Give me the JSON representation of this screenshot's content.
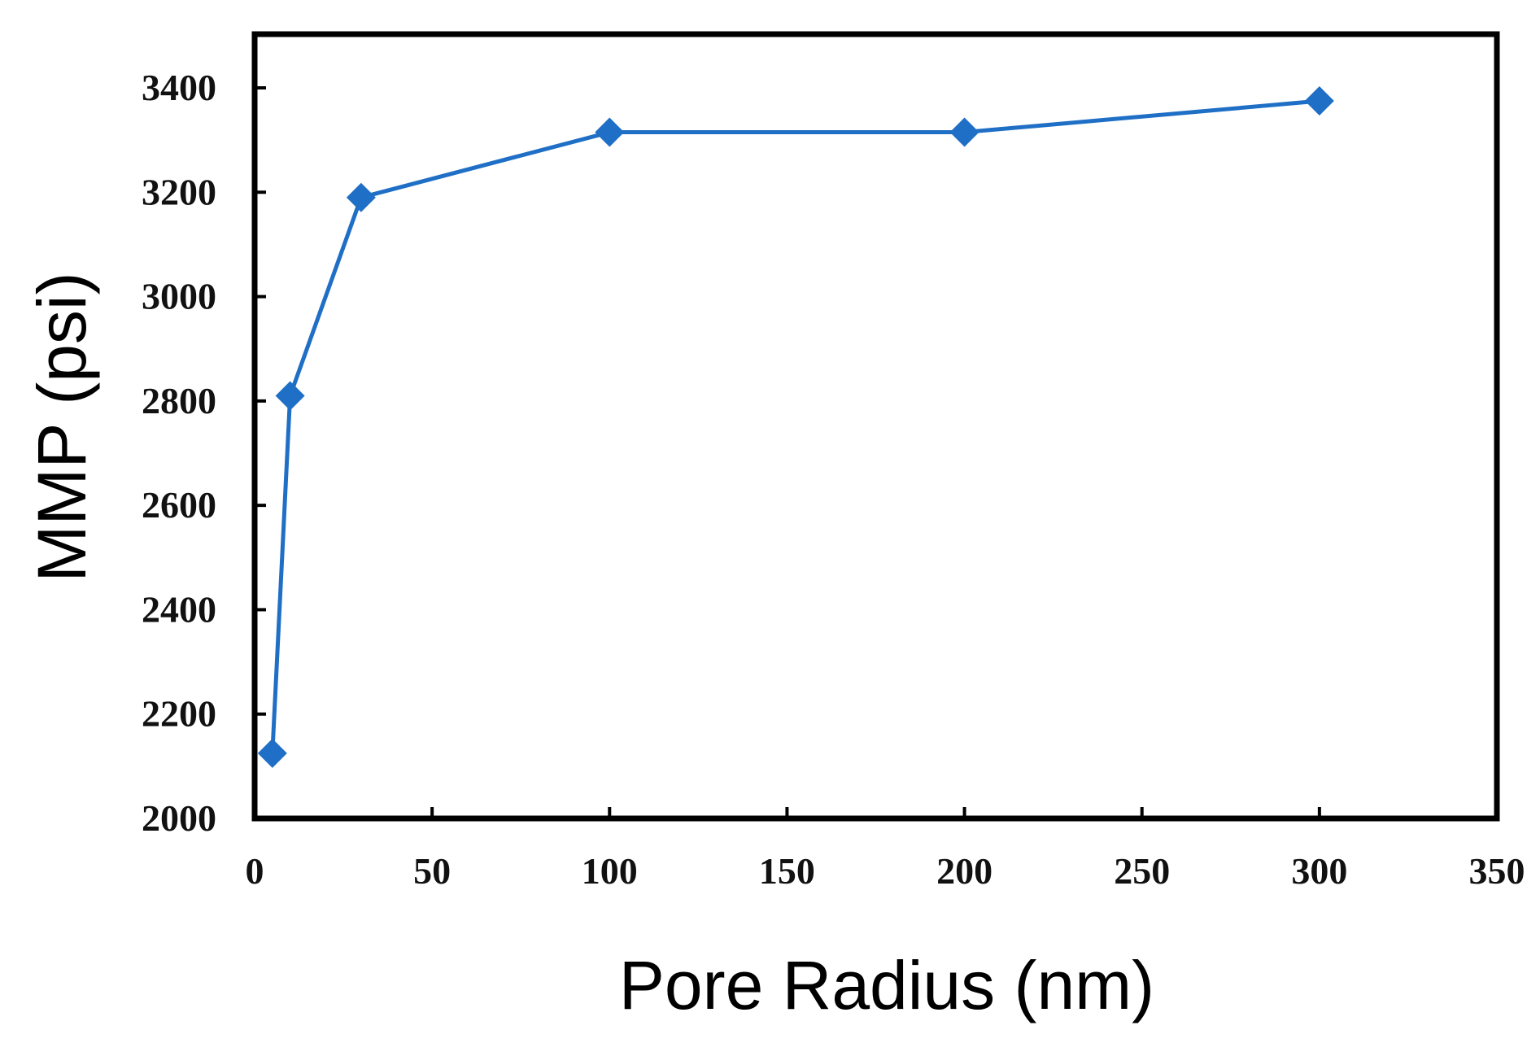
{
  "chart_data": {
    "type": "line",
    "title": "",
    "xlabel": "Pore Radius (nm)",
    "ylabel": "MMP (psi)",
    "xlim": [
      0,
      350
    ],
    "ylim": [
      2000,
      3400
    ],
    "x_ticks": [
      0,
      50,
      100,
      150,
      200,
      250,
      300,
      350
    ],
    "y_ticks": [
      2000,
      2200,
      2400,
      2600,
      2800,
      3000,
      3200,
      3400
    ],
    "grid": false,
    "legend": "none",
    "series": [
      {
        "color": "#1f6fc6",
        "marker": "diamond",
        "x": [
          5,
          10,
          30,
          100,
          200,
          300
        ],
        "y": [
          2125,
          2810,
          3190,
          3315,
          3315,
          3375
        ]
      }
    ]
  }
}
